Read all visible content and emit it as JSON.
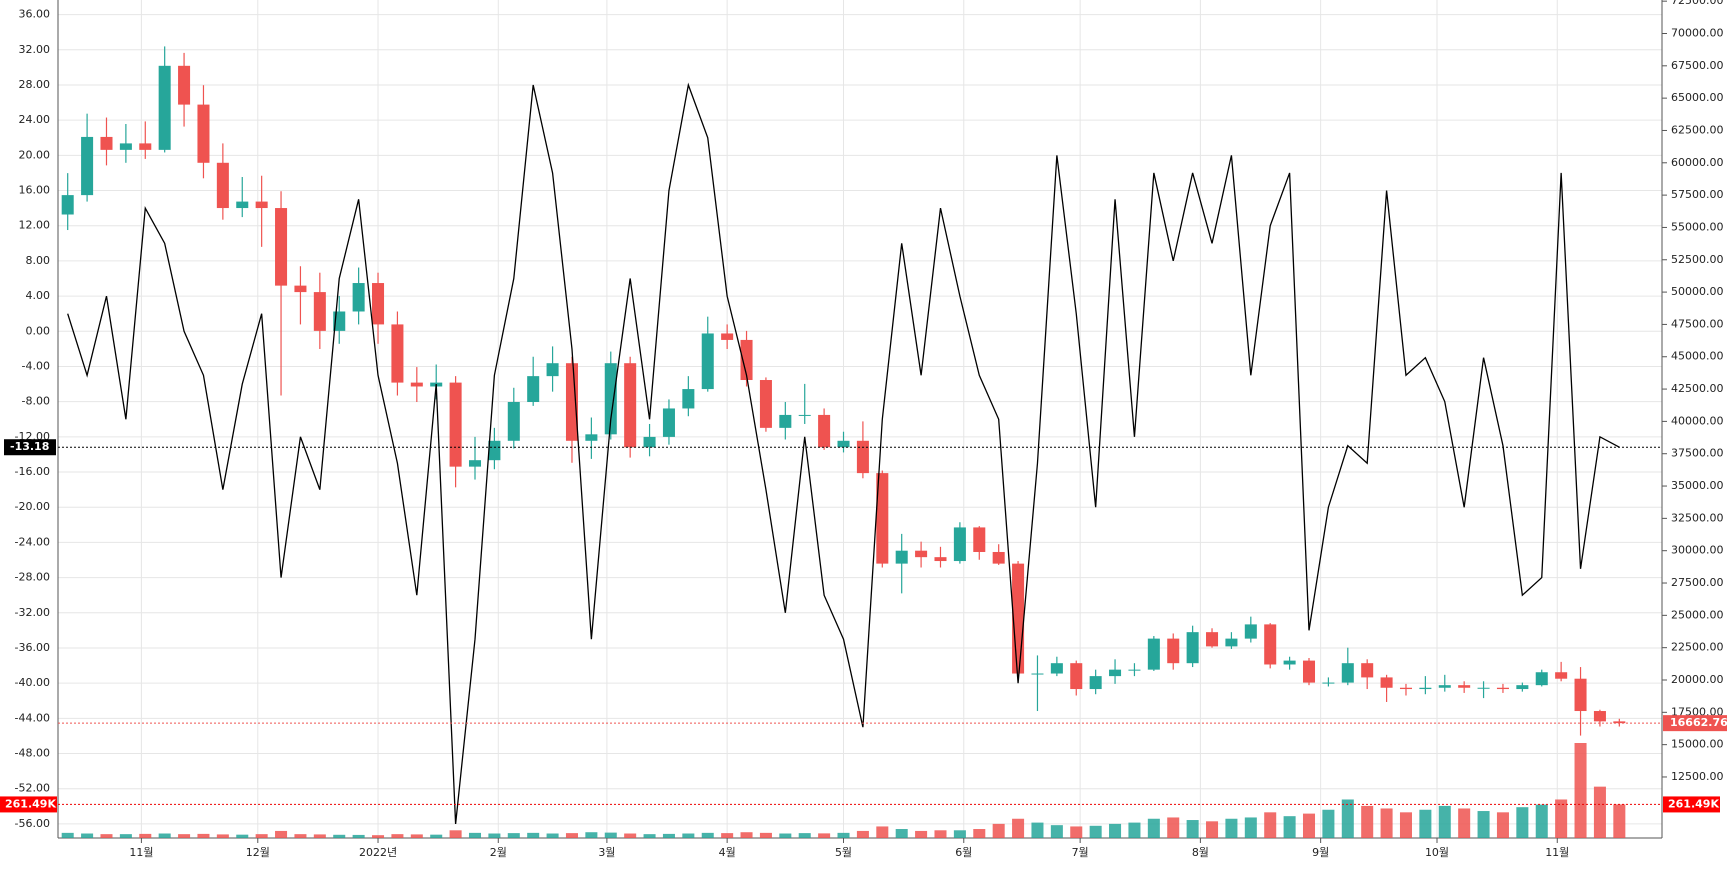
{
  "chart_data": {
    "type": "candlestick",
    "xlim": [
      -0.5,
      82.2
    ],
    "xticks": [
      {
        "value": 3.8,
        "label": "11월"
      },
      {
        "value": 9.8,
        "label": "12월"
      },
      {
        "value": 16,
        "label": "2022년"
      },
      {
        "value": 22.2,
        "label": "2월"
      },
      {
        "value": 27.8,
        "label": "3월"
      },
      {
        "value": 34,
        "label": "4월"
      },
      {
        "value": 40,
        "label": "5월"
      },
      {
        "value": 46.2,
        "label": "6월"
      },
      {
        "value": 52.2,
        "label": "7월"
      },
      {
        "value": 58.4,
        "label": "8월"
      },
      {
        "value": 64.6,
        "label": "9월"
      },
      {
        "value": 70.6,
        "label": "10월"
      },
      {
        "value": 76.8,
        "label": "11월"
      }
    ],
    "grid": true,
    "up_color": "#26a69a",
    "down_color": "#ef5350",
    "open": [
      56000,
      57500,
      62000,
      61000,
      61500,
      61000,
      67500,
      64500,
      60000,
      56500,
      57000,
      56500,
      50500,
      50000,
      47000,
      48500,
      50700,
      47500,
      43000,
      42700,
      43000,
      36500,
      37000,
      38500,
      41500,
      43500,
      44500,
      38500,
      39000,
      44500,
      38000,
      38800,
      41000,
      42500,
      46800,
      46300,
      43200,
      39500,
      40500,
      40500,
      38000,
      38500,
      36000,
      29000,
      30000,
      29500,
      29200,
      31800,
      29900,
      29000,
      20500,
      20500,
      21300,
      19300,
      20300,
      20800,
      20800,
      23200,
      21300,
      23700,
      22600,
      23200,
      24300,
      21200,
      21500,
      19800,
      19800,
      21300,
      20200,
      19400,
      19300,
      19400,
      19600,
      19400,
      19400,
      19300,
      19600,
      20600,
      20100,
      17600,
      16800
    ],
    "high": [
      59200,
      63800,
      63500,
      63000,
      63200,
      69000,
      68500,
      66000,
      61500,
      58900,
      59000,
      57800,
      52000,
      51500,
      49700,
      51900,
      51500,
      48500,
      44200,
      44400,
      43500,
      38800,
      39500,
      42600,
      45000,
      45800,
      45000,
      40300,
      45400,
      45000,
      39800,
      41700,
      43500,
      48100,
      47500,
      47000,
      43400,
      41500,
      42900,
      41000,
      39200,
      40000,
      36200,
      31300,
      30700,
      30300,
      32200,
      31900,
      30500,
      29200,
      21900,
      21800,
      21500,
      20800,
      21600,
      21300,
      23400,
      23600,
      24200,
      24000,
      23700,
      24900,
      24400,
      21800,
      21700,
      20200,
      22500,
      21600,
      20400,
      19700,
      20300,
      20400,
      19900,
      19900,
      19700,
      19800,
      20800,
      21400,
      21000,
      17700,
      17000
    ],
    "low": [
      54800,
      57000,
      59800,
      60000,
      60300,
      60800,
      62800,
      58800,
      55600,
      55800,
      53500,
      42000,
      47500,
      45600,
      46000,
      47500,
      46000,
      42000,
      41500,
      41700,
      34900,
      35500,
      36300,
      37900,
      41200,
      42300,
      36800,
      37100,
      38600,
      37200,
      37300,
      38200,
      40400,
      42300,
      45600,
      42700,
      39200,
      38600,
      39800,
      37800,
      37600,
      35600,
      28700,
      26700,
      28700,
      28700,
      29000,
      29300,
      28900,
      20300,
      17600,
      20300,
      18800,
      18900,
      19700,
      20300,
      20700,
      20800,
      21000,
      22500,
      22400,
      22900,
      20900,
      20800,
      19600,
      19500,
      19600,
      19300,
      18300,
      18800,
      18900,
      19100,
      19000,
      18600,
      19000,
      19100,
      19500,
      19900,
      15700,
      16400,
      16400
    ],
    "close": [
      57500,
      62000,
      61000,
      61500,
      61000,
      67500,
      64500,
      60000,
      56500,
      57000,
      56500,
      50500,
      50000,
      47000,
      48500,
      50700,
      47500,
      43000,
      42700,
      43000,
      36500,
      37000,
      38500,
      41500,
      43500,
      44500,
      38500,
      39000,
      44500,
      38000,
      38800,
      41000,
      42500,
      46800,
      46300,
      43200,
      39500,
      40500,
      40500,
      38000,
      38500,
      36000,
      29000,
      30000,
      29500,
      29200,
      31800,
      29900,
      29000,
      20500,
      20500,
      21300,
      19300,
      20300,
      20800,
      20800,
      23200,
      21300,
      23700,
      22600,
      23200,
      24300,
      21200,
      21500,
      19800,
      19800,
      21300,
      20200,
      19400,
      19300,
      19400,
      19600,
      19400,
      19400,
      19300,
      19600,
      20600,
      20100,
      17600,
      16800,
      16662.76
    ],
    "volume": [
      40000,
      35000,
      30000,
      30000,
      32000,
      35000,
      30000,
      32000,
      28000,
      26000,
      30000,
      55000,
      30000,
      28000,
      25000,
      24000,
      22000,
      30000,
      28000,
      26000,
      60000,
      40000,
      35000,
      38000,
      40000,
      35000,
      38000,
      45000,
      42000,
      35000,
      30000,
      32000,
      35000,
      40000,
      38000,
      45000,
      40000,
      35000,
      38000,
      36000,
      40000,
      55000,
      90000,
      70000,
      55000,
      60000,
      60000,
      70000,
      110000,
      150000,
      120000,
      100000,
      90000,
      95000,
      110000,
      120000,
      150000,
      160000,
      140000,
      130000,
      150000,
      160000,
      200000,
      170000,
      190000,
      220000,
      300000,
      250000,
      230000,
      200000,
      220000,
      250000,
      230000,
      210000,
      200000,
      240000,
      260000,
      300000,
      740000,
      400000,
      261490
    ],
    "last_volume_label": "261.49K",
    "y2lim": [
      7780,
      72590
    ],
    "y2ticks": [
      {
        "value": 12500,
        "label": "12500.00"
      },
      {
        "value": 15000,
        "label": "15000.00"
      },
      {
        "value": 17500,
        "label": "17500.00"
      },
      {
        "value": 20000,
        "label": "20000.00"
      },
      {
        "value": 22500,
        "label": "22500.00"
      },
      {
        "value": 25000,
        "label": "25000.00"
      },
      {
        "value": 27500,
        "label": "27500.00"
      },
      {
        "value": 30000,
        "label": "30000.00"
      },
      {
        "value": 32500,
        "label": "32500.00"
      },
      {
        "value": 35000,
        "label": "35000.00"
      },
      {
        "value": 37500,
        "label": "37500.00"
      },
      {
        "value": 40000,
        "label": "40000.00"
      },
      {
        "value": 42500,
        "label": "42500.00"
      },
      {
        "value": 45000,
        "label": "45000.00"
      },
      {
        "value": 47500,
        "label": "47500.00"
      },
      {
        "value": 50000,
        "label": "50000.00"
      },
      {
        "value": 52500,
        "label": "52500.00"
      },
      {
        "value": 55000,
        "label": "55000.00"
      },
      {
        "value": 57500,
        "label": "57500.00"
      },
      {
        "value": 60000,
        "label": "60000.00"
      },
      {
        "value": 62500,
        "label": "62500.00"
      },
      {
        "value": 65000,
        "label": "65000.00"
      },
      {
        "value": 67500,
        "label": "67500.00"
      },
      {
        "value": 70000,
        "label": "70000.00"
      },
      {
        "value": 72500,
        "label": "72500.00"
      }
    ],
    "ylim": [
      -57.6,
      37.66
    ],
    "yticks": [
      {
        "value": -56,
        "label": "-56.00"
      },
      {
        "value": -52,
        "label": "-52.00"
      },
      {
        "value": -48,
        "label": "-48.00"
      },
      {
        "value": -44,
        "label": "-44.00"
      },
      {
        "value": -40,
        "label": "-40.00"
      },
      {
        "value": -36,
        "label": "-36.00"
      },
      {
        "value": -32,
        "label": "-32.00"
      },
      {
        "value": -28,
        "label": "-28.00"
      },
      {
        "value": -24,
        "label": "-24.00"
      },
      {
        "value": -20,
        "label": "-20.00"
      },
      {
        "value": -16,
        "label": "-16.00"
      },
      {
        "value": -12,
        "label": "-12.00"
      },
      {
        "value": -8,
        "label": "-8.00"
      },
      {
        "value": -4,
        "label": "-4.00"
      },
      {
        "value": 0,
        "label": "0.00"
      },
      {
        "value": 4,
        "label": "4.00"
      },
      {
        "value": 8,
        "label": "8.00"
      },
      {
        "value": 12,
        "label": "12.00"
      },
      {
        "value": 16,
        "label": "16.00"
      },
      {
        "value": 20,
        "label": "20.00"
      },
      {
        "value": 24,
        "label": "24.00"
      },
      {
        "value": 28,
        "label": "28.00"
      },
      {
        "value": 32,
        "label": "32.00"
      },
      {
        "value": 36,
        "label": "36.00"
      }
    ],
    "oscillator": {
      "color": "#000000",
      "values": [
        2,
        -5,
        4,
        -10,
        14,
        10,
        0,
        -5,
        -18,
        -6,
        2,
        -28,
        -12,
        -18,
        6,
        15,
        -5,
        -15,
        -30,
        -6,
        -56,
        -35,
        -5,
        6,
        28,
        18,
        -2,
        -35,
        -10,
        6,
        -10,
        16,
        28,
        22,
        4,
        -5,
        -18,
        -32,
        -12,
        -30,
        -35,
        -45,
        -10,
        10,
        -5,
        14,
        4,
        -5,
        -10,
        -40,
        -15,
        20,
        2,
        -20,
        15,
        -12,
        18,
        8,
        18,
        10,
        20,
        -5,
        12,
        18,
        -34,
        -20,
        -13,
        -15,
        16,
        -5,
        -3,
        -8,
        -20,
        -3,
        -13,
        -30,
        -28,
        18,
        -27,
        -12,
        -13.18
      ]
    }
  }
}
